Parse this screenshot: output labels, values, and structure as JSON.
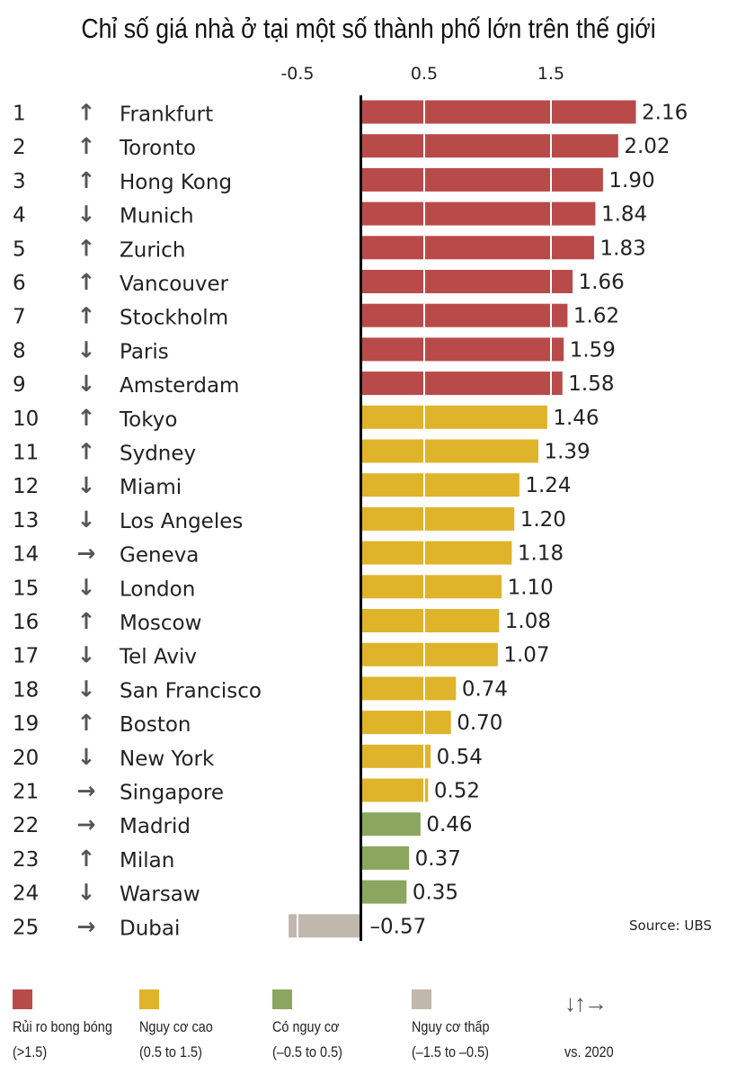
{
  "title": "Chỉ số giá nhà ở tại một số thành phố lớn trên thế giới",
  "source": "Source: UBS",
  "chart_data": {
    "type": "bar",
    "orientation": "horizontal",
    "title": "Chỉ số giá nhà ở tại một số thành phố lớn trên thế giới",
    "xticks": [
      "-0.5",
      "0.5",
      "1.5"
    ],
    "xtick_values": [
      -0.5,
      0.5,
      1.5
    ],
    "xlim": [
      -0.6,
      2.5
    ],
    "rows": [
      {
        "rank": "1",
        "trend": "up",
        "city": "Frankfurt",
        "value": 2.16,
        "label": "2.16",
        "cat": "bubble"
      },
      {
        "rank": "2",
        "trend": "up",
        "city": "Toronto",
        "value": 2.02,
        "label": "2.02",
        "cat": "bubble"
      },
      {
        "rank": "3",
        "trend": "up",
        "city": "Hong Kong",
        "value": 1.9,
        "label": "1.90",
        "cat": "bubble"
      },
      {
        "rank": "4",
        "trend": "down",
        "city": "Munich",
        "value": 1.84,
        "label": "1.84",
        "cat": "bubble"
      },
      {
        "rank": "5",
        "trend": "up",
        "city": "Zurich",
        "value": 1.83,
        "label": "1.83",
        "cat": "bubble"
      },
      {
        "rank": "6",
        "trend": "up",
        "city": "Vancouver",
        "value": 1.66,
        "label": "1.66",
        "cat": "bubble"
      },
      {
        "rank": "7",
        "trend": "up",
        "city": "Stockholm",
        "value": 1.62,
        "label": "1.62",
        "cat": "bubble"
      },
      {
        "rank": "8",
        "trend": "down",
        "city": "Paris",
        "value": 1.59,
        "label": "1.59",
        "cat": "bubble"
      },
      {
        "rank": "9",
        "trend": "down",
        "city": "Amsterdam",
        "value": 1.58,
        "label": "1.58",
        "cat": "bubble"
      },
      {
        "rank": "10",
        "trend": "up",
        "city": "Tokyo",
        "value": 1.46,
        "label": "1.46",
        "cat": "high"
      },
      {
        "rank": "11",
        "trend": "up",
        "city": "Sydney",
        "value": 1.39,
        "label": "1.39",
        "cat": "high"
      },
      {
        "rank": "12",
        "trend": "down",
        "city": "Miami",
        "value": 1.24,
        "label": "1.24",
        "cat": "high"
      },
      {
        "rank": "13",
        "trend": "down",
        "city": "Los Angeles",
        "value": 1.2,
        "label": "1.20",
        "cat": "high"
      },
      {
        "rank": "14",
        "trend": "right",
        "city": "Geneva",
        "value": 1.18,
        "label": "1.18",
        "cat": "high"
      },
      {
        "rank": "15",
        "trend": "down",
        "city": "London",
        "value": 1.1,
        "label": "1.10",
        "cat": "high"
      },
      {
        "rank": "16",
        "trend": "up",
        "city": "Moscow",
        "value": 1.08,
        "label": "1.08",
        "cat": "high"
      },
      {
        "rank": "17",
        "trend": "down",
        "city": "Tel Aviv",
        "value": 1.07,
        "label": "1.07",
        "cat": "high"
      },
      {
        "rank": "18",
        "trend": "down",
        "city": "San Francisco",
        "value": 0.74,
        "label": "0.74",
        "cat": "high"
      },
      {
        "rank": "19",
        "trend": "up",
        "city": "Boston",
        "value": 0.7,
        "label": "0.70",
        "cat": "high"
      },
      {
        "rank": "20",
        "trend": "down",
        "city": "New York",
        "value": 0.54,
        "label": "0.54",
        "cat": "high"
      },
      {
        "rank": "21",
        "trend": "right",
        "city": "Singapore",
        "value": 0.52,
        "label": "0.52",
        "cat": "high"
      },
      {
        "rank": "22",
        "trend": "right",
        "city": "Madrid",
        "value": 0.46,
        "label": "0.46",
        "cat": "moderate"
      },
      {
        "rank": "23",
        "trend": "up",
        "city": "Milan",
        "value": 0.37,
        "label": "0.37",
        "cat": "moderate"
      },
      {
        "rank": "24",
        "trend": "down",
        "city": "Warsaw",
        "value": 0.35,
        "label": "0.35",
        "cat": "moderate"
      },
      {
        "rank": "25",
        "trend": "right",
        "city": "Dubai",
        "value": -0.57,
        "label": "–0.57",
        "cat": "low"
      }
    ],
    "colors": {
      "bubble": "#b84b4a",
      "high": "#dfb42b",
      "moderate": "#8ba65f",
      "low": "#c0b8ad"
    }
  },
  "legend": [
    {
      "key": "bubble",
      "label": "Rủi ro bong bóng",
      "range": "(>1.5)"
    },
    {
      "key": "high",
      "label": "Nguy cơ cao",
      "range": "(0.5 to 1.5)"
    },
    {
      "key": "moderate",
      "label": "Có  nguy cơ",
      "range": "(–0.5 to 0.5)"
    },
    {
      "key": "low",
      "label": "Nguy cơ thấp",
      "range": "(–1.5 to –0.5)"
    }
  ],
  "trend_legend": {
    "label": "vs. 2020",
    "arrows": "↓↑→"
  }
}
